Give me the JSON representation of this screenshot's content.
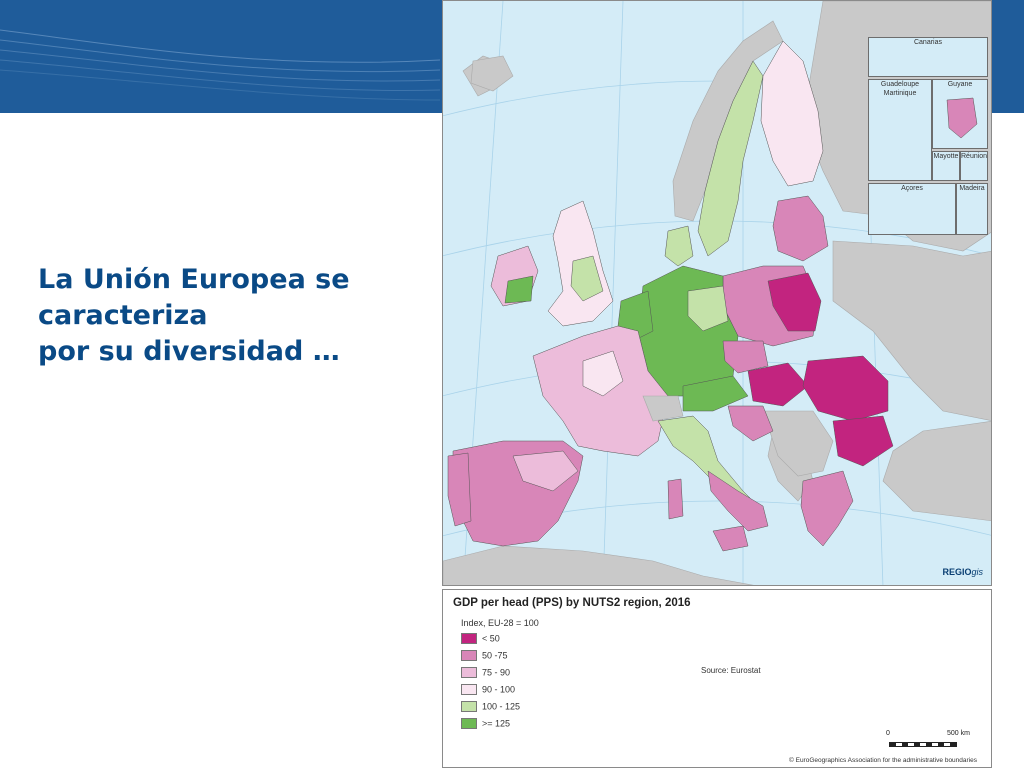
{
  "heading": {
    "line1": "La Unión Europea se",
    "line2": "caracteriza",
    "line3": "por su diversidad …"
  },
  "colors": {
    "banner": "#1f5c9a",
    "heading": "#0a4a86",
    "sea": "#d4ecf7",
    "non_eu": "#c9c9c9"
  },
  "map": {
    "insets": {
      "canarias": "Canarias",
      "guadeloupe": "Guadeloupe",
      "martinique": "Martinique",
      "guyane": "Guyane",
      "mayotte": "Mayotte",
      "reunion": "Réunion",
      "acores": "Açores",
      "madeira": "Madeira"
    },
    "credit_bold": "REGIO",
    "credit_italic": "gis"
  },
  "legend": {
    "title": "GDP per head (PPS) by NUTS2 region, 2016",
    "subtitle": "Index, EU-28 = 100",
    "classes": [
      {
        "label": "< 50",
        "color": "#c2247f"
      },
      {
        "label": "50 -75",
        "color": "#d886b8"
      },
      {
        "label": "75 - 90",
        "color": "#ecbcda"
      },
      {
        "label": "90 - 100",
        "color": "#f9e6f1"
      },
      {
        "label": "100 - 125",
        "color": "#c4e2a9"
      },
      {
        "label": ">= 125",
        "color": "#6db954"
      }
    ],
    "source": "Source: Eurostat",
    "scale_start": "0",
    "scale_end": "500 km",
    "copyright": "© EuroGeographics Association for the administrative boundaries"
  }
}
